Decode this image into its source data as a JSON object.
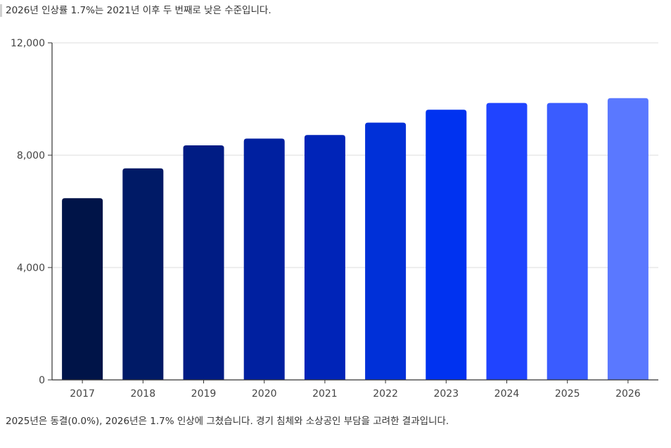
{
  "caption_top": "2026년 인상률 1.7%는 2021년 이후 두 번째로 낮은 수준입니다.",
  "caption_bottom": "2025년은 동결(0.0%), 2026년은 1.7% 인상에 그쳤습니다. 경기 침체와 소상공인 부담을 고려한 결과입니다.",
  "chart_data": {
    "type": "bar",
    "title": "",
    "xlabel": "",
    "ylabel": "",
    "categories": [
      "2017",
      "2018",
      "2019",
      "2020",
      "2021",
      "2022",
      "2023",
      "2024",
      "2025",
      "2026"
    ],
    "values": [
      6470,
      7530,
      8350,
      8590,
      8720,
      9160,
      9620,
      9860,
      9860,
      10030
    ],
    "ylim": [
      0,
      12000
    ],
    "yticks": [
      0,
      4000,
      8000,
      12000
    ],
    "ytick_labels": [
      "0",
      "4,000",
      "8,000",
      "12,000"
    ],
    "grid": true,
    "legend": "none",
    "bar_colors": [
      "#001448",
      "#001a66",
      "#001c84",
      "#0020a0",
      "#0024b8",
      "#0030d8",
      "#0032f0",
      "#2044ff",
      "#3a5cff",
      "#5a78ff"
    ]
  }
}
